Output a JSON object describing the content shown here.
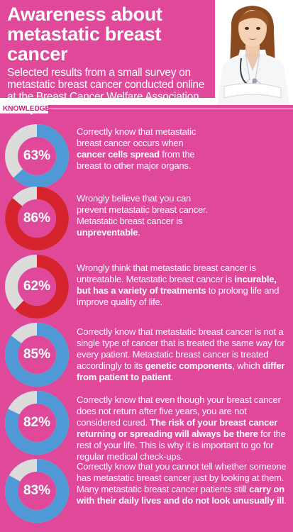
{
  "header": {
    "title_line1": "Awareness about",
    "title_line2": "metastatic breast cancer",
    "subtitle": "Selected results from a small survey on metastatic breast cancer conducted online at the Breast Cancer Welfare Association Malaysia website."
  },
  "section_label": "KNOWLEDGE",
  "colors": {
    "pink": "#e0489a",
    "blue": "#4f9ad6",
    "red": "#d5242e",
    "gray": "#dcdcdc"
  },
  "items": [
    {
      "percent": "63%",
      "value": 63,
      "color": "blue",
      "text_a": "Correctly know that metastatic breast cancer occurs when ",
      "text_b": "cancer cells spread",
      "text_c": " from the breast to other major organs."
    },
    {
      "percent": "86%",
      "value": 86,
      "color": "red",
      "text_a": "Wrongly believe that you can prevent metastatic breast cancer. Metastatic breast cancer is ",
      "text_b": "unpreventable",
      "text_c": "."
    },
    {
      "percent": "62%",
      "value": 62,
      "color": "red",
      "text_a": "Wrongly think that metastatic breast cancer is untreatable. Metastatic breast cancer is ",
      "text_b": "incurable, but has a variety of treatments",
      "text_c": " to prolong life and improve quality of life."
    },
    {
      "percent": "85%",
      "value": 85,
      "color": "blue",
      "text_a": "Correctly know that metastatic breast cancer is not a single type of cancer that is treated the same way for every patient. Metastatic breast cancer is treated accordingly to its ",
      "text_b": "genetic components",
      "text_c": ", which ",
      "text_d": "differ from patient to patient",
      "text_e": "."
    },
    {
      "percent": "82%",
      "value": 82,
      "color": "blue",
      "text_a": "Correctly know that even though your breast cancer does not return after five years, you are not considered cured. ",
      "text_b": "The risk of your breast cancer returning or spreading will always be there",
      "text_c": " for the rest of your life. This is why it is important to go for regular medical check-ups."
    },
    {
      "percent": "83%",
      "value": 83,
      "color": "blue",
      "text_a": "Correctly know that you cannot tell whether someone has metastatic breast cancer just by looking at them. Many metastatic breast cancer patients still ",
      "text_b": "carry on with their daily lives and do not look unusually ill",
      "text_c": "."
    }
  ]
}
